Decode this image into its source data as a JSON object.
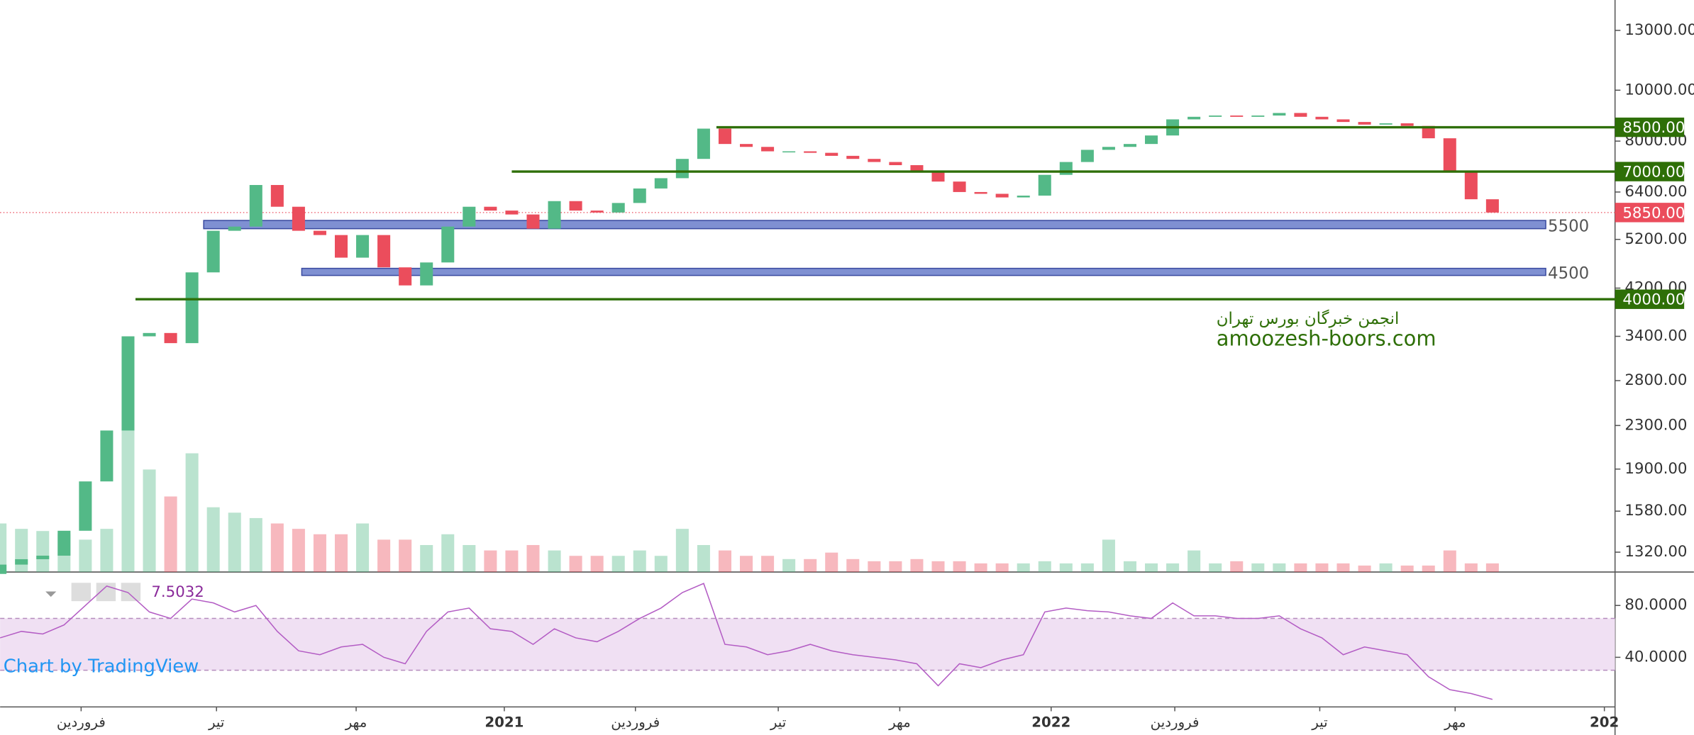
{
  "chart_data": {
    "type": "candlestick",
    "x": [
      0,
      2,
      4,
      6,
      8,
      10,
      12,
      14,
      16,
      18,
      20,
      22,
      24,
      26,
      28,
      30,
      32,
      34,
      36,
      38,
      40,
      42,
      44,
      46,
      48,
      50,
      52,
      54,
      56,
      58,
      60,
      62,
      64,
      66,
      68,
      70,
      72,
      74,
      76,
      78,
      80,
      82,
      84,
      86,
      88,
      90,
      92,
      94,
      96,
      98,
      100,
      102,
      104,
      106,
      108,
      110,
      112,
      114,
      116,
      118,
      120,
      122,
      124,
      126,
      128,
      130,
      132,
      134,
      136,
      138,
      140
    ],
    "open": [
      1200,
      1250,
      1280,
      1300,
      1450,
      1800,
      2250,
      3400,
      3450,
      3300,
      4500,
      5400,
      5500,
      6600,
      6000,
      5400,
      5300,
      4800,
      5300,
      4600,
      4250,
      4700,
      5500,
      6000,
      5900,
      5800,
      5450,
      6150,
      5900,
      5850,
      6100,
      6500,
      6800,
      7400,
      8450,
      7900,
      7800,
      7650,
      7650,
      7600,
      7500,
      7400,
      7300,
      7200,
      7000,
      6700,
      6400,
      6350,
      6250,
      6300,
      6900,
      7300,
      7700,
      7800,
      7900,
      8200,
      8800,
      8900,
      8950,
      8900,
      8950,
      9050,
      8900,
      8800,
      8700,
      8600,
      8650,
      8550,
      8100,
      7000,
      6200
    ],
    "close": [
      1250,
      1280,
      1300,
      1450,
      1800,
      2250,
      3400,
      3450,
      3300,
      4500,
      5400,
      5500,
      6600,
      6000,
      5400,
      5300,
      4800,
      5300,
      4600,
      4250,
      4700,
      5500,
      6000,
      5900,
      5800,
      5450,
      6150,
      5900,
      5850,
      6100,
      6500,
      6800,
      7400,
      8450,
      7900,
      7800,
      7650,
      7650,
      7600,
      7500,
      7400,
      7300,
      7200,
      7000,
      6700,
      6400,
      6350,
      6250,
      6300,
      6900,
      7300,
      7700,
      7800,
      7900,
      8200,
      8800,
      8900,
      8950,
      8900,
      8950,
      9050,
      8900,
      8800,
      8700,
      8600,
      8650,
      8550,
      8100,
      7000,
      6200,
      5850
    ],
    "volume": [
      45,
      40,
      38,
      35,
      30,
      40,
      150,
      95,
      70,
      110,
      60,
      55,
      50,
      45,
      40,
      35,
      35,
      45,
      30,
      30,
      25,
      35,
      25,
      20,
      20,
      25,
      20,
      15,
      15,
      15,
      20,
      15,
      40,
      25,
      20,
      15,
      15,
      12,
      12,
      18,
      12,
      10,
      10,
      12,
      10,
      10,
      8,
      8,
      8,
      10,
      8,
      8,
      30,
      10,
      8,
      8,
      20,
      8,
      10,
      8,
      8,
      8,
      8,
      8,
      6,
      8,
      6,
      6,
      20,
      8,
      8
    ],
    "rsi": [
      55,
      60,
      58,
      65,
      80,
      95,
      90,
      75,
      70,
      85,
      82,
      75,
      80,
      60,
      45,
      42,
      48,
      50,
      40,
      35,
      60,
      75,
      78,
      62,
      60,
      50,
      62,
      55,
      52,
      60,
      70,
      78,
      90,
      97,
      50,
      48,
      42,
      45,
      50,
      45,
      42,
      40,
      38,
      35,
      18,
      35,
      32,
      38,
      42,
      75,
      78,
      76,
      75,
      72,
      70,
      82,
      72,
      72,
      70,
      70,
      72,
      62,
      55,
      42,
      48,
      45,
      42,
      25,
      15,
      12,
      7.5032
    ],
    "rsi_value_label": "7.5032",
    "up_color": "#53b987",
    "down_color": "#eb4d5c",
    "rsi_color": "#b35cc4",
    "log_scale": true,
    "xlim": [
      0,
      151.5
    ],
    "xticks": [
      {
        "value": 7.6,
        "label": "فروردین"
      },
      {
        "value": 20.3,
        "label": "تیر"
      },
      {
        "value": 33.4,
        "label": "مهر"
      },
      {
        "value": 47.3,
        "label": "2021"
      },
      {
        "value": 59.6,
        "label": "فروردین"
      },
      {
        "value": 73,
        "label": "تیر"
      },
      {
        "value": 84.4,
        "label": "مهر"
      },
      {
        "value": 98.6,
        "label": "2022"
      },
      {
        "value": 110.2,
        "label": "فروردین"
      },
      {
        "value": 123.8,
        "label": "تیر"
      },
      {
        "value": 136.5,
        "label": "مهر"
      },
      {
        "value": 150.5,
        "label": "202"
      }
    ],
    "ylim": [
      1210,
      14850
    ],
    "yticks": [
      {
        "value": 13000,
        "label": "13000.00"
      },
      {
        "value": 10000,
        "label": "10000.00"
      },
      {
        "value": 8000,
        "label": "8000.00"
      },
      {
        "value": 6400,
        "label": "6400.00"
      },
      {
        "value": 5200,
        "label": "5200.00"
      },
      {
        "value": 4200,
        "label": "4200.00"
      },
      {
        "value": 3400,
        "label": "3400.00"
      },
      {
        "value": 2800,
        "label": "2800.00"
      },
      {
        "value": 2300,
        "label": "2300.00"
      },
      {
        "value": 1900,
        "label": "1900.00"
      },
      {
        "value": 1580,
        "label": "1580.00"
      },
      {
        "value": 1320,
        "label": "1320.00"
      }
    ],
    "rsi_lim": [
      1.7,
      105.8
    ],
    "rsi_ticks": [
      {
        "value": 80,
        "label": "80.0000"
      },
      {
        "value": 40,
        "label": "40.0000"
      }
    ],
    "rsi_band": [
      30,
      70
    ],
    "levels": [
      {
        "value": 8500,
        "label": "8500.00",
        "start": 67.2,
        "color": "#2e6f07"
      },
      {
        "value": 7000,
        "label": "7000.00",
        "start": 48,
        "color": "#2e6f07"
      },
      {
        "value": 4000,
        "label": "4000.00",
        "start": 12.7,
        "color": "#2e6f07"
      }
    ],
    "zones": [
      {
        "low": 5450,
        "high": 5650,
        "start": 19.1,
        "end": 145,
        "label": "5500",
        "color": "#7f90d2"
      },
      {
        "low": 4440,
        "high": 4580,
        "start": 28.3,
        "end": 145,
        "label": "4500",
        "color": "#7f90d2"
      }
    ],
    "last_price": {
      "value": 5850,
      "label": "5850.00",
      "color": "#eb4d5c"
    },
    "annotations": [
      {
        "text": "انجمن خبرگان بورس تهران",
        "color": "#2e6f07"
      },
      {
        "text": "amoozesh-boors.com",
        "color": "#2e6f07"
      }
    ],
    "credit": "Chart by TradingView"
  }
}
